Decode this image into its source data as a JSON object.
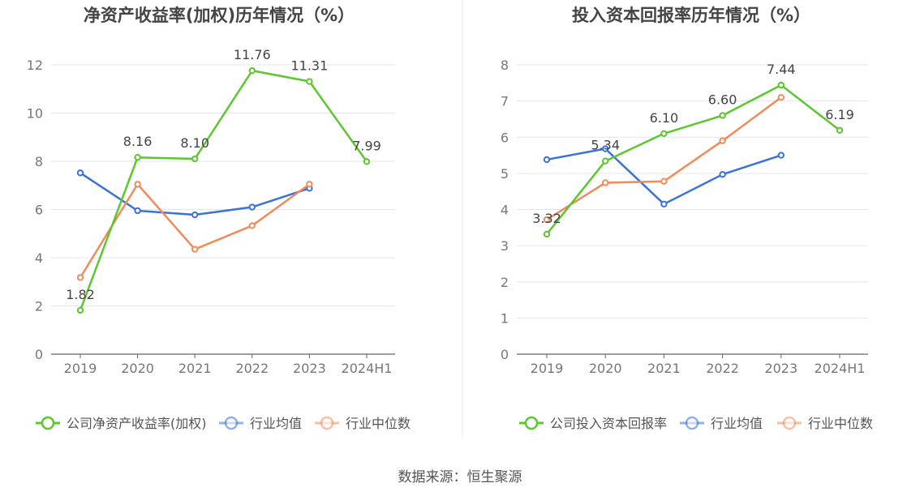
{
  "source": "数据来源：恒生聚源",
  "colors": {
    "company": "#5cc72e",
    "industry_avg": "#3a72d8",
    "industry_median": "#f28b5a"
  },
  "chart_data": [
    {
      "type": "line",
      "title": "净资产收益率(加权)历年情况（%）",
      "categories": [
        "2019",
        "2020",
        "2021",
        "2022",
        "2023",
        "2024H1"
      ],
      "ylim": [
        0,
        12
      ],
      "yticks": [
        0,
        2,
        4,
        6,
        8,
        10,
        12
      ],
      "grid": true,
      "legend_position": "bottom",
      "series": [
        {
          "name": "公司净资产收益率(加权)",
          "values": [
            1.82,
            8.16,
            8.1,
            11.76,
            11.31,
            7.99
          ],
          "data_labels": [
            "1.82",
            "8.16",
            "8.10",
            "11.76",
            "11.31",
            "7.99"
          ]
        },
        {
          "name": "行业均值",
          "values": [
            7.52,
            5.95,
            5.78,
            6.1,
            6.88,
            null
          ]
        },
        {
          "name": "行业中位数",
          "values": [
            3.18,
            7.05,
            4.35,
            5.33,
            7.05,
            null
          ]
        }
      ]
    },
    {
      "type": "line",
      "title": "投入资本回报率历年情况（%）",
      "categories": [
        "2019",
        "2020",
        "2021",
        "2022",
        "2023",
        "2024H1"
      ],
      "ylim": [
        0,
        8
      ],
      "yticks": [
        0,
        1,
        2,
        3,
        4,
        5,
        6,
        7,
        8
      ],
      "grid": true,
      "legend_position": "bottom",
      "series": [
        {
          "name": "公司投入资本回报率",
          "values": [
            3.32,
            5.34,
            6.1,
            6.6,
            7.44,
            6.19
          ],
          "data_labels": [
            "3.32",
            "5.34",
            "6.10",
            "6.60",
            "7.44",
            "6.19"
          ]
        },
        {
          "name": "行业均值",
          "values": [
            5.38,
            5.68,
            4.15,
            4.97,
            5.5,
            null
          ]
        },
        {
          "name": "行业中位数",
          "values": [
            3.72,
            4.74,
            4.78,
            5.9,
            7.1,
            null
          ]
        }
      ]
    }
  ]
}
